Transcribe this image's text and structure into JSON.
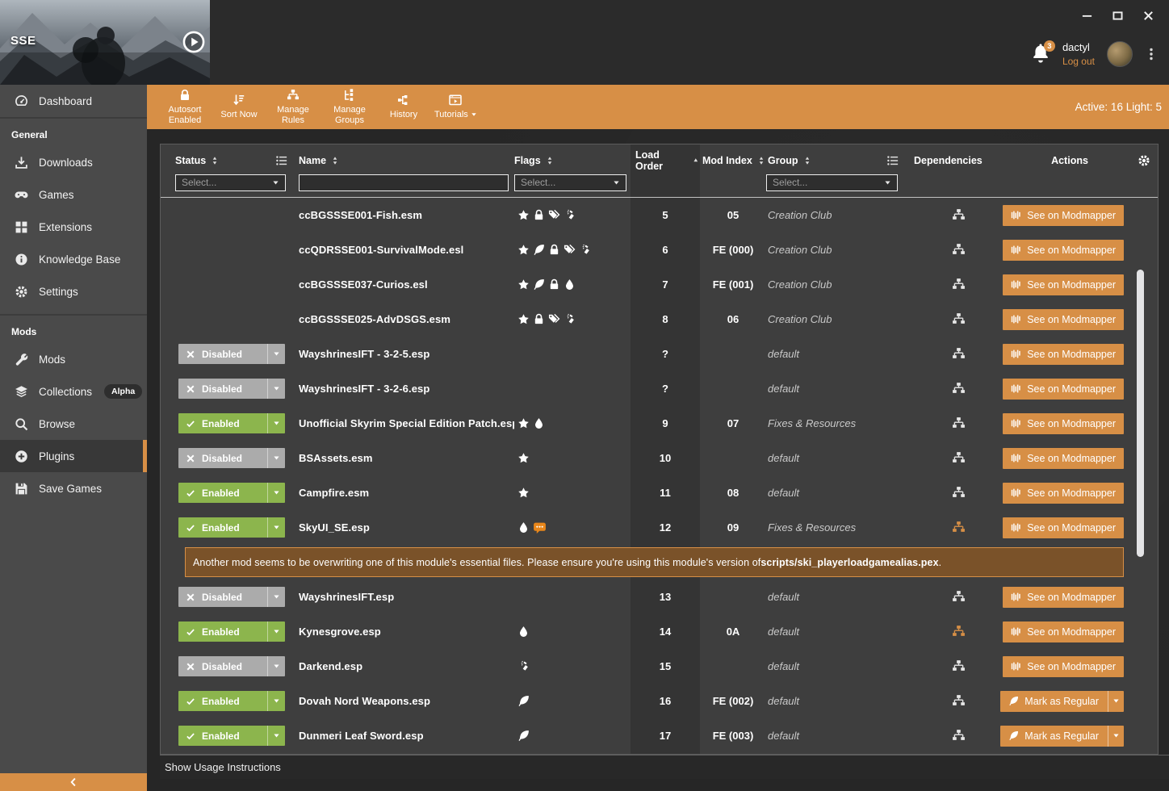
{
  "colors": {
    "accent": "#D78F46",
    "enabled": "#8CB54D",
    "disabled": "#ABABAB",
    "warning_bg": "#7A5229"
  },
  "titlebar": {
    "game_label": "SSE",
    "notifications": "3",
    "username": "dactyl",
    "logout": "Log out"
  },
  "toolbar": {
    "buttons": [
      {
        "label": "Autosort Enabled",
        "icon": "lock-icon"
      },
      {
        "label": "Sort Now",
        "icon": "sort-amount-icon"
      },
      {
        "label": "Manage Rules",
        "icon": "sitemap-icon"
      },
      {
        "label": "Manage Groups",
        "icon": "tree-icon"
      },
      {
        "label": "History",
        "icon": "flow-icon"
      },
      {
        "label": "Tutorials",
        "icon": "video-icon"
      }
    ],
    "summary": "Active: 16 Light: 5"
  },
  "sidebar": {
    "dashboard": "Dashboard",
    "section_general": "General",
    "downloads": "Downloads",
    "games": "Games",
    "extensions": "Extensions",
    "knowledge_base": "Knowledge Base",
    "settings": "Settings",
    "section_mods": "Mods",
    "mods": "Mods",
    "collections": "Collections",
    "collections_badge": "Alpha",
    "browse": "Browse",
    "plugins": "Plugins",
    "save_games": "Save Games"
  },
  "plugins_table": {
    "columns": {
      "status": "Status",
      "name": "Name",
      "flags": "Flags",
      "load_order": "Load Order",
      "mod_index": "Mod Index",
      "group": "Group",
      "dependencies": "Dependencies",
      "actions": "Actions"
    },
    "filters": {
      "status": "Select...",
      "flags": "Select...",
      "group": "Select..."
    },
    "status_labels": {
      "enabled": "Enabled",
      "disabled": "Disabled"
    },
    "action_labels": {
      "modmapper": "See on Modmapper",
      "mark_regular": "Mark as Regular"
    },
    "warning": {
      "text_before": "Another mod seems to be overwriting one of this module's essential files. Please ensure you're using this module's version of ",
      "file": "scripts/ski_playerloadgamealias.pex",
      "text_after": "."
    },
    "rows": [
      {
        "status": "",
        "name": "ccBGSSSE001-Fish.esm",
        "flags": [
          "star",
          "lock",
          "tags",
          "spray"
        ],
        "load_order": "5",
        "mod_index": "05",
        "group": "Creation Club",
        "dep_warning": false,
        "action": "modmapper",
        "warning": false
      },
      {
        "status": "",
        "name": "ccQDRSSE001-SurvivalMode.esl",
        "flags": [
          "star",
          "feather",
          "lock",
          "tags",
          "spray"
        ],
        "load_order": "6",
        "mod_index": "FE (000)",
        "group": "Creation Club",
        "dep_warning": false,
        "action": "modmapper",
        "warning": false
      },
      {
        "status": "",
        "name": "ccBGSSSE037-Curios.esl",
        "flags": [
          "star",
          "feather",
          "lock",
          "droplet"
        ],
        "load_order": "7",
        "mod_index": "FE (001)",
        "group": "Creation Club",
        "dep_warning": false,
        "action": "modmapper",
        "warning": false
      },
      {
        "status": "",
        "name": "ccBGSSSE025-AdvDSGS.esm",
        "flags": [
          "star",
          "lock",
          "tags",
          "spray"
        ],
        "load_order": "8",
        "mod_index": "06",
        "group": "Creation Club",
        "dep_warning": false,
        "action": "modmapper",
        "warning": false
      },
      {
        "status": "disabled",
        "name": "WayshrinesIFT - 3-2-5.esp",
        "flags": [],
        "load_order": "?",
        "mod_index": "",
        "group": "default",
        "dep_warning": false,
        "action": "modmapper",
        "warning": false
      },
      {
        "status": "disabled",
        "name": "WayshrinesIFT - 3-2-6.esp",
        "flags": [],
        "load_order": "?",
        "mod_index": "",
        "group": "default",
        "dep_warning": false,
        "action": "modmapper",
        "warning": false
      },
      {
        "status": "enabled",
        "name": "Unofficial Skyrim Special Edition Patch.esp",
        "flags": [
          "star",
          "droplet"
        ],
        "load_order": "9",
        "mod_index": "07",
        "group": "Fixes & Resources",
        "dep_warning": false,
        "action": "modmapper",
        "warning": false
      },
      {
        "status": "disabled",
        "name": "BSAssets.esm",
        "flags": [
          "star"
        ],
        "load_order": "10",
        "mod_index": "",
        "group": "default",
        "dep_warning": false,
        "action": "modmapper",
        "warning": false
      },
      {
        "status": "enabled",
        "name": "Campfire.esm",
        "flags": [
          "star"
        ],
        "load_order": "11",
        "mod_index": "08",
        "group": "default",
        "dep_warning": false,
        "action": "modmapper",
        "warning": false
      },
      {
        "status": "enabled",
        "name": "SkyUI_SE.esp",
        "flags": [
          "droplet",
          "chat"
        ],
        "load_order": "12",
        "mod_index": "09",
        "group": "Fixes & Resources",
        "dep_warning": true,
        "action": "modmapper",
        "warning": true
      },
      {
        "status": "disabled",
        "name": "WayshrinesIFT.esp",
        "flags": [],
        "load_order": "13",
        "mod_index": "",
        "group": "default",
        "dep_warning": false,
        "action": "modmapper",
        "warning": false
      },
      {
        "status": "enabled",
        "name": "Kynesgrove.esp",
        "flags": [
          "droplet"
        ],
        "load_order": "14",
        "mod_index": "0A",
        "group": "default",
        "dep_warning": true,
        "action": "modmapper",
        "warning": false
      },
      {
        "status": "disabled",
        "name": "Darkend.esp",
        "flags": [
          "spray"
        ],
        "load_order": "15",
        "mod_index": "",
        "group": "default",
        "dep_warning": false,
        "action": "modmapper",
        "warning": false
      },
      {
        "status": "enabled",
        "name": "Dovah Nord Weapons.esp",
        "flags": [
          "feather"
        ],
        "load_order": "16",
        "mod_index": "FE (002)",
        "group": "default",
        "dep_warning": false,
        "action": "mark_regular",
        "warning": false
      },
      {
        "status": "enabled",
        "name": "Dunmeri Leaf Sword.esp",
        "flags": [
          "feather"
        ],
        "load_order": "17",
        "mod_index": "FE (003)",
        "group": "default",
        "dep_warning": false,
        "action": "mark_regular",
        "warning": false
      }
    ]
  },
  "footer": {
    "label": "Show Usage Instructions"
  }
}
